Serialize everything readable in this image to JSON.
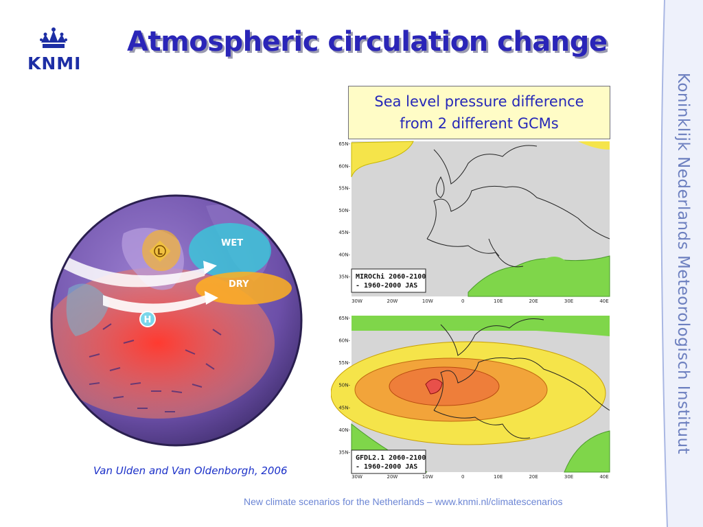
{
  "slide": {
    "title": "Atmospheric circulation change",
    "logo_text": "KNMI",
    "side_text": "Koninklijk Nederlands Meteorologisch Instituut",
    "callout": {
      "line1": "Sea level pressure difference",
      "line2": "from 2 different GCMs"
    },
    "citation": "Van Ulden and Van Oldenborgh, 2006",
    "footer": "New climate scenarios for the Netherlands – www.knmi.nl/climatescenarios"
  },
  "globe": {
    "wet_label": "WET",
    "dry_label": "DRY",
    "low_label": "L",
    "high_label": "H"
  },
  "maps": {
    "lat_ticks": [
      "65N",
      "60N",
      "55N",
      "50N",
      "45N",
      "40N",
      "35N"
    ],
    "lon_ticks": [
      "30W",
      "20W",
      "10W",
      "0",
      "10E",
      "20E",
      "30E",
      "40E"
    ],
    "top_map": {
      "label_line1": "MIROChi 2060-2100",
      "label_line2": "- 1960-2000  JAS"
    },
    "bottom_map": {
      "label_line1": "GFDL2.1 2060-2100",
      "label_line2": "- 1960-2000  JAS"
    }
  },
  "colors": {
    "title": "#2a25b8",
    "anomaly_yellow": "#f5e44a",
    "anomaly_orange": "#f2a43a",
    "anomaly_red": "#e8504a",
    "anomaly_green": "#7fd64a",
    "map_background": "#d6d6d6"
  }
}
